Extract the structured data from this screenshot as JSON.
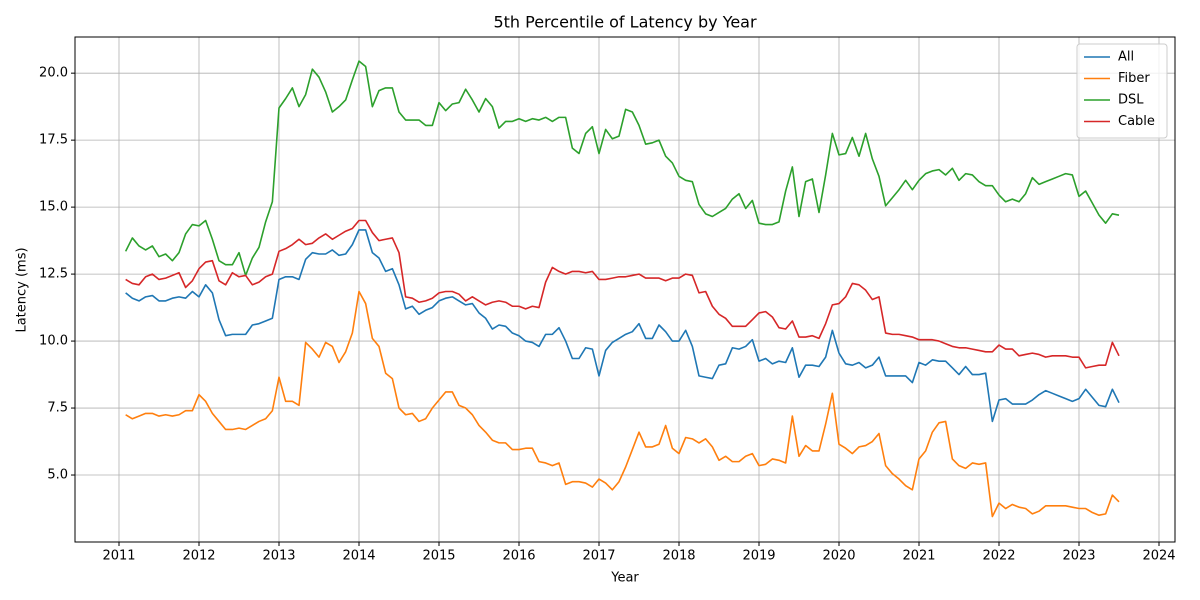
{
  "chart_data": {
    "type": "line",
    "title": "5th Percentile of Latency by Year",
    "xlabel": "Year",
    "ylabel": "Latency (ms)",
    "xlim": [
      2010.45,
      2024.2
    ],
    "ylim": [
      2.5,
      21.35
    ],
    "xticks": [
      2011,
      2012,
      2013,
      2014,
      2015,
      2016,
      2017,
      2018,
      2019,
      2020,
      2021,
      2022,
      2023,
      2024
    ],
    "yticks": [
      {
        "value": 5,
        "label": "5.0"
      },
      7.5,
      {
        "value": 10,
        "label": "10.0"
      },
      12.5,
      {
        "value": 15,
        "label": "15.0"
      },
      17.5,
      {
        "value": 20,
        "label": "20.0"
      }
    ],
    "grid": true,
    "legend": "upper right",
    "x": [
      2011.083,
      2011.167,
      2011.25,
      2011.333,
      2011.417,
      2011.5,
      2011.583,
      2011.667,
      2011.75,
      2011.833,
      2011.917,
      2012.0,
      2012.083,
      2012.167,
      2012.25,
      2012.333,
      2012.417,
      2012.5,
      2012.583,
      2012.667,
      2012.75,
      2012.833,
      2012.917,
      2013.0,
      2013.083,
      2013.167,
      2013.25,
      2013.333,
      2013.417,
      2013.5,
      2013.583,
      2013.667,
      2013.75,
      2013.833,
      2013.917,
      2014.0,
      2014.083,
      2014.167,
      2014.25,
      2014.333,
      2014.417,
      2014.5,
      2014.583,
      2014.667,
      2014.75,
      2014.833,
      2014.917,
      2015.0,
      2015.083,
      2015.167,
      2015.25,
      2015.333,
      2015.417,
      2015.5,
      2015.583,
      2015.667,
      2015.75,
      2015.833,
      2015.917,
      2016.0,
      2016.083,
      2016.167,
      2016.25,
      2016.333,
      2016.417,
      2016.5,
      2016.583,
      2016.667,
      2016.75,
      2016.833,
      2016.917,
      2017.0,
      2017.083,
      2017.167,
      2017.25,
      2017.333,
      2017.417,
      2017.5,
      2017.583,
      2017.667,
      2017.75,
      2017.833,
      2017.917,
      2018.0,
      2018.083,
      2018.167,
      2018.25,
      2018.333,
      2018.417,
      2018.5,
      2018.583,
      2018.667,
      2018.75,
      2018.833,
      2018.917,
      2019.0,
      2019.083,
      2019.167,
      2019.25,
      2019.333,
      2019.417,
      2019.5,
      2019.583,
      2019.667,
      2019.75,
      2019.833,
      2019.917,
      2020.0,
      2020.083,
      2020.167,
      2020.25,
      2020.333,
      2020.417,
      2020.5,
      2020.583,
      2020.667,
      2020.75,
      2020.833,
      2020.917,
      2021.0,
      2021.083,
      2021.167,
      2021.25,
      2021.333,
      2021.417,
      2021.5,
      2021.583,
      2021.667,
      2021.75,
      2021.833,
      2021.917,
      2022.0,
      2022.083,
      2022.167,
      2022.25,
      2022.333,
      2022.417,
      2022.5,
      2022.583,
      2022.667,
      2022.75,
      2022.833,
      2022.917,
      2023.0,
      2023.083,
      2023.167,
      2023.25,
      2023.333,
      2023.417,
      2023.5
    ],
    "series": [
      {
        "name": "All",
        "color": "#1f77b4",
        "values": [
          11.8,
          11.6,
          11.5,
          11.65,
          11.7,
          11.5,
          11.5,
          11.6,
          11.65,
          11.6,
          11.85,
          11.65,
          12.1,
          11.8,
          10.8,
          10.2,
          10.25,
          10.25,
          10.25,
          10.6,
          10.65,
          10.75,
          10.85,
          12.3,
          12.4,
          12.4,
          12.3,
          13.05,
          13.3,
          13.25,
          13.25,
          13.4,
          13.2,
          13.25,
          13.6,
          14.15,
          14.15,
          13.3,
          13.1,
          12.6,
          12.7,
          12.1,
          11.2,
          11.3,
          11.0,
          11.15,
          11.25,
          11.5,
          11.6,
          11.65,
          11.5,
          11.35,
          11.4,
          11.05,
          10.85,
          10.45,
          10.6,
          10.55,
          10.3,
          10.2,
          10.0,
          9.95,
          9.8,
          10.25,
          10.25,
          10.5,
          10.0,
          9.35,
          9.35,
          9.75,
          9.7,
          8.7,
          9.65,
          9.95,
          10.1,
          10.25,
          10.35,
          10.65,
          10.1,
          10.1,
          10.6,
          10.35,
          10.0,
          10.0,
          10.4,
          9.8,
          8.7,
          8.65,
          8.6,
          9.1,
          9.15,
          9.75,
          9.7,
          9.8,
          10.05,
          9.25,
          9.35,
          9.15,
          9.25,
          9.2,
          9.75,
          8.65,
          9.1,
          9.1,
          9.05,
          9.4,
          10.4,
          9.55,
          9.15,
          9.1,
          9.2,
          9.0,
          9.1,
          9.4,
          8.7,
          8.7,
          8.7,
          8.7,
          8.45,
          9.2,
          9.1,
          9.3,
          9.25,
          9.25,
          9.0,
          8.75,
          9.05,
          8.75,
          8.75,
          8.8,
          7.0,
          7.8,
          7.85,
          7.65,
          7.65,
          7.65,
          7.8,
          8.0,
          8.15,
          8.05,
          7.95,
          7.85,
          7.75,
          7.85,
          8.2,
          7.9,
          7.6,
          7.55,
          8.2,
          7.7
        ]
      },
      {
        "name": "Fiber",
        "color": "#ff7f0e",
        "values": [
          7.25,
          7.1,
          7.2,
          7.3,
          7.3,
          7.2,
          7.25,
          7.2,
          7.25,
          7.4,
          7.4,
          8.0,
          7.75,
          7.3,
          7.0,
          6.7,
          6.7,
          6.75,
          6.7,
          6.85,
          7.0,
          7.1,
          7.4,
          8.65,
          7.75,
          7.75,
          7.6,
          9.95,
          9.7,
          9.4,
          9.95,
          9.8,
          9.2,
          9.6,
          10.3,
          11.85,
          11.4,
          10.1,
          9.8,
          8.8,
          8.6,
          7.5,
          7.25,
          7.3,
          7.0,
          7.1,
          7.5,
          7.8,
          8.1,
          8.1,
          7.6,
          7.5,
          7.25,
          6.85,
          6.6,
          6.3,
          6.2,
          6.2,
          5.95,
          5.95,
          6.0,
          6.0,
          5.5,
          5.45,
          5.35,
          5.45,
          4.65,
          4.75,
          4.75,
          4.7,
          4.55,
          4.85,
          4.7,
          4.45,
          4.75,
          5.3,
          5.95,
          6.6,
          6.05,
          6.05,
          6.15,
          6.85,
          6.0,
          5.8,
          6.4,
          6.35,
          6.2,
          6.35,
          6.05,
          5.55,
          5.7,
          5.5,
          5.5,
          5.7,
          5.8,
          5.35,
          5.4,
          5.6,
          5.55,
          5.45,
          7.2,
          5.7,
          6.1,
          5.9,
          5.9,
          6.9,
          8.05,
          6.15,
          6.0,
          5.8,
          6.05,
          6.1,
          6.25,
          6.55,
          5.35,
          5.05,
          4.85,
          4.6,
          4.45,
          5.6,
          5.9,
          6.6,
          6.95,
          7.0,
          5.6,
          5.35,
          5.25,
          5.45,
          5.4,
          5.45,
          3.45,
          3.95,
          3.75,
          3.9,
          3.8,
          3.75,
          3.55,
          3.65,
          3.85,
          3.85,
          3.85,
          3.85,
          3.8,
          3.75,
          3.75,
          3.6,
          3.5,
          3.55,
          4.25,
          4.0
        ]
      },
      {
        "name": "DSL",
        "color": "#2ca02c",
        "values": [
          13.35,
          13.85,
          13.55,
          13.4,
          13.55,
          13.15,
          13.25,
          13.0,
          13.3,
          14.0,
          14.35,
          14.3,
          14.5,
          13.8,
          13.0,
          12.85,
          12.85,
          13.3,
          12.45,
          13.1,
          13.5,
          14.45,
          15.2,
          18.7,
          19.05,
          19.45,
          18.75,
          19.2,
          20.15,
          19.85,
          19.3,
          18.55,
          18.75,
          19.0,
          19.75,
          20.45,
          20.25,
          18.75,
          19.35,
          19.45,
          19.45,
          18.55,
          18.25,
          18.25,
          18.25,
          18.05,
          18.05,
          18.9,
          18.6,
          18.85,
          18.9,
          19.4,
          19.0,
          18.55,
          19.05,
          18.75,
          17.95,
          18.2,
          18.2,
          18.3,
          18.2,
          18.3,
          18.25,
          18.35,
          18.2,
          18.35,
          18.35,
          17.2,
          17.0,
          17.75,
          18.0,
          17.0,
          17.9,
          17.55,
          17.65,
          18.65,
          18.55,
          18.05,
          17.35,
          17.4,
          17.5,
          16.9,
          16.65,
          16.15,
          16.0,
          15.95,
          15.1,
          14.75,
          14.65,
          14.8,
          14.95,
          15.3,
          15.5,
          14.95,
          15.25,
          14.4,
          14.35,
          14.35,
          14.45,
          15.6,
          16.5,
          14.65,
          15.95,
          16.05,
          14.8,
          16.2,
          17.75,
          16.95,
          17.0,
          17.6,
          16.9,
          17.75,
          16.8,
          16.15,
          15.05,
          15.35,
          15.65,
          16.0,
          15.65,
          16.0,
          16.25,
          16.35,
          16.4,
          16.2,
          16.45,
          16.0,
          16.25,
          16.2,
          15.95,
          15.8,
          15.8,
          15.45,
          15.2,
          15.3,
          15.2,
          15.5,
          16.1,
          15.85,
          15.95,
          16.05,
          16.15,
          16.25,
          16.2,
          15.4,
          15.6,
          15.15,
          14.7,
          14.4,
          14.75,
          14.7
        ]
      },
      {
        "name": "Cable",
        "color": "#d62728",
        "values": [
          12.3,
          12.15,
          12.1,
          12.4,
          12.5,
          12.3,
          12.35,
          12.45,
          12.55,
          12.0,
          12.25,
          12.7,
          12.95,
          13.0,
          12.25,
          12.1,
          12.55,
          12.4,
          12.45,
          12.1,
          12.2,
          12.4,
          12.5,
          13.35,
          13.45,
          13.6,
          13.8,
          13.6,
          13.65,
          13.85,
          14.0,
          13.8,
          13.95,
          14.1,
          14.2,
          14.5,
          14.5,
          14.05,
          13.75,
          13.8,
          13.85,
          13.3,
          11.65,
          11.6,
          11.45,
          11.5,
          11.6,
          11.8,
          11.85,
          11.85,
          11.75,
          11.5,
          11.65,
          11.5,
          11.35,
          11.45,
          11.5,
          11.45,
          11.3,
          11.3,
          11.2,
          11.3,
          11.25,
          12.2,
          12.75,
          12.6,
          12.5,
          12.6,
          12.6,
          12.55,
          12.6,
          12.3,
          12.3,
          12.35,
          12.4,
          12.4,
          12.45,
          12.5,
          12.35,
          12.35,
          12.35,
          12.25,
          12.35,
          12.35,
          12.5,
          12.45,
          11.8,
          11.85,
          11.3,
          11.0,
          10.85,
          10.55,
          10.55,
          10.55,
          10.8,
          11.05,
          11.1,
          10.9,
          10.5,
          10.45,
          10.75,
          10.15,
          10.15,
          10.2,
          10.1,
          10.65,
          11.35,
          11.4,
          11.65,
          12.15,
          12.1,
          11.9,
          11.55,
          11.65,
          10.3,
          10.25,
          10.25,
          10.2,
          10.15,
          10.05,
          10.05,
          10.05,
          10.0,
          9.9,
          9.8,
          9.75,
          9.75,
          9.7,
          9.65,
          9.6,
          9.6,
          9.85,
          9.7,
          9.7,
          9.45,
          9.5,
          9.55,
          9.5,
          9.4,
          9.45,
          9.45,
          9.45,
          9.4,
          9.4,
          9.0,
          9.05,
          9.1,
          9.1,
          9.95,
          9.45
        ]
      }
    ]
  }
}
